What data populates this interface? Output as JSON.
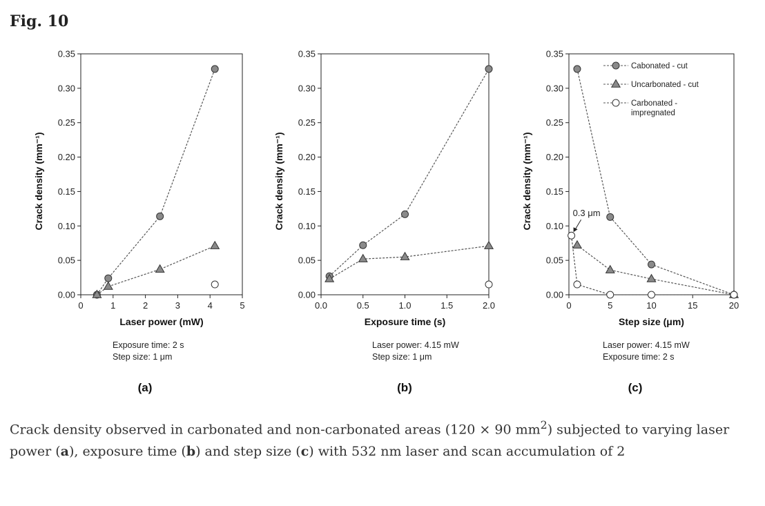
{
  "figure": {
    "label": "Fig. 10"
  },
  "caption": {
    "part1": "Crack density observed in carbonated and non-carbonated areas (120 × 90 mm",
    "sup": "2",
    "part2": ") subjected to varying laser power (",
    "a": "a",
    "part3": "), exposure time (",
    "b": "b",
    "part4": ") and step size (",
    "c": "c",
    "part5": ") with 532 nm laser and scan accumulation of 2"
  },
  "colors": {
    "filled": "#8a8a8a",
    "open": "#ffffff",
    "stroke": "#333333",
    "line": "#555555"
  },
  "chart_data": [
    {
      "type": "line",
      "panel_label": "(a)",
      "xlabel": "Laser power (mW)",
      "ylabel": "Crack density (mm⁻¹)",
      "xlim": [
        0,
        5
      ],
      "ylim": [
        0,
        0.35
      ],
      "xticks": [
        "0",
        "1",
        "2",
        "3",
        "4",
        "5"
      ],
      "xtick_values": [
        0,
        1,
        2,
        3,
        4,
        5
      ],
      "yticks": [
        "0.00",
        "0.05",
        "0.10",
        "0.15",
        "0.20",
        "0.25",
        "0.30",
        "0.35"
      ],
      "ytick_values": [
        0,
        0.05,
        0.1,
        0.15,
        0.2,
        0.25,
        0.3,
        0.35
      ],
      "notes": [
        "Exposure time: 2 s",
        "Step size: 1 μm"
      ],
      "series": [
        {
          "marker": "circle-filled",
          "connected": true,
          "x": [
            0.5,
            0.85,
            2.45,
            4.15
          ],
          "y": [
            0.0,
            0.024,
            0.114,
            0.328
          ]
        },
        {
          "marker": "triangle-filled",
          "connected": true,
          "x": [
            0.5,
            0.85,
            2.45,
            4.15
          ],
          "y": [
            0.0,
            0.012,
            0.037,
            0.071
          ]
        },
        {
          "marker": "circle-open",
          "connected": false,
          "x": [
            4.15
          ],
          "y": [
            0.015
          ]
        }
      ]
    },
    {
      "type": "line",
      "panel_label": "(b)",
      "xlabel": "Exposure time (s)",
      "ylabel": "Crack density (mm⁻¹)",
      "xlim": [
        0,
        2
      ],
      "ylim": [
        0,
        0.35
      ],
      "xticks": [
        "0.0",
        "0.5",
        "1.0",
        "1.5",
        "2.0"
      ],
      "xtick_values": [
        0,
        0.5,
        1.0,
        1.5,
        2.0
      ],
      "yticks": [
        "0.00",
        "0.05",
        "0.10",
        "0.15",
        "0.20",
        "0.25",
        "0.30",
        "0.35"
      ],
      "ytick_values": [
        0,
        0.05,
        0.1,
        0.15,
        0.2,
        0.25,
        0.3,
        0.35
      ],
      "notes": [
        "Laser power: 4.15 mW",
        "Step size: 1 μm"
      ],
      "series": [
        {
          "marker": "circle-filled",
          "connected": true,
          "x": [
            0.1,
            0.5,
            1.0,
            2.0
          ],
          "y": [
            0.027,
            0.072,
            0.117,
            0.328
          ]
        },
        {
          "marker": "triangle-filled",
          "connected": true,
          "x": [
            0.1,
            0.5,
            1.0,
            2.0
          ],
          "y": [
            0.023,
            0.052,
            0.055,
            0.071
          ]
        },
        {
          "marker": "circle-open",
          "connected": false,
          "x": [
            2.0
          ],
          "y": [
            0.015
          ]
        }
      ]
    },
    {
      "type": "line",
      "panel_label": "(c)",
      "xlabel": "Step size (μm)",
      "ylabel": "Crack density (mm⁻¹)",
      "xlim": [
        0,
        20
      ],
      "ylim": [
        0,
        0.35
      ],
      "xticks": [
        "0",
        "5",
        "10",
        "15",
        "20"
      ],
      "xtick_values": [
        0,
        5,
        10,
        15,
        20
      ],
      "yticks": [
        "0.00",
        "0.05",
        "0.10",
        "0.15",
        "0.20",
        "0.25",
        "0.30",
        "0.35"
      ],
      "ytick_values": [
        0,
        0.05,
        0.1,
        0.15,
        0.2,
        0.25,
        0.3,
        0.35
      ],
      "notes": [
        "Laser power: 4.15 mW",
        "Exposure time: 2 s"
      ],
      "annotation": "0.3 μm",
      "legend": [
        "Cabonated - cut",
        "Uncarbonated - cut",
        "Carbonated - impregnated"
      ],
      "legend_lines": [
        [
          "Cabonated - cut"
        ],
        [
          "Uncarbonated - cut"
        ],
        [
          "Carbonated -",
          "impregnated"
        ]
      ],
      "series": [
        {
          "name": "Cabonated - cut",
          "marker": "circle-filled",
          "connected": true,
          "x": [
            1,
            5,
            10,
            20
          ],
          "y": [
            0.328,
            0.113,
            0.044,
            0.0
          ]
        },
        {
          "name": "Uncarbonated - cut",
          "marker": "triangle-filled",
          "connected": true,
          "x": [
            1,
            5,
            10,
            20
          ],
          "y": [
            0.072,
            0.036,
            0.023,
            0.0
          ]
        },
        {
          "name": "Carbonated - impregnated",
          "marker": "circle-open",
          "connected": true,
          "x": [
            0.3,
            1,
            5,
            10,
            20
          ],
          "y": [
            0.086,
            0.015,
            0.0,
            0.0,
            0.0
          ]
        }
      ]
    }
  ]
}
